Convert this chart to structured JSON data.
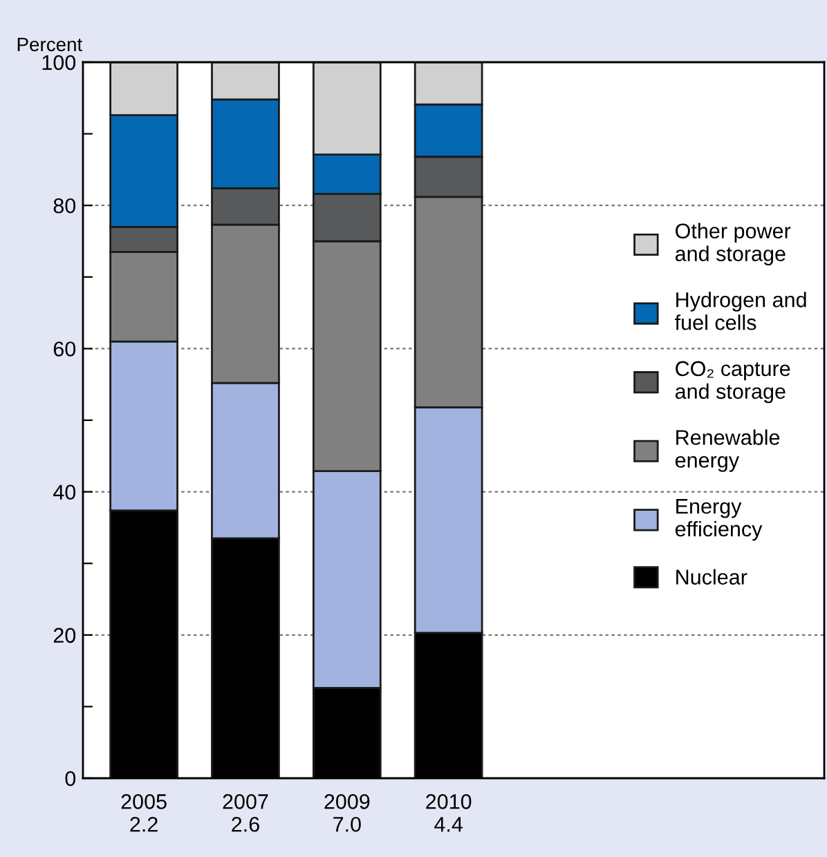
{
  "chart_data": {
    "type": "bar",
    "stacked": true,
    "ylabel": "Percent",
    "categories": [
      "2005\n2.2",
      "2007\n2.6",
      "2009\n7.0",
      "2010\n4.4"
    ],
    "series": [
      {
        "name": "Nuclear",
        "color": "#000000",
        "values": [
          37.4,
          33.5,
          12.6,
          20.3
        ]
      },
      {
        "name": "Energy\nefficiency",
        "color": "#a1b3de",
        "values": [
          23.6,
          21.7,
          30.3,
          31.5
        ]
      },
      {
        "name": "Renewable\nenergy",
        "color": "#808080",
        "values": [
          12.5,
          22.1,
          32.1,
          29.4
        ]
      },
      {
        "name": "CO₂ capture\nand storage",
        "color": "#58595b",
        "values": [
          3.5,
          5.1,
          6.6,
          5.6
        ]
      },
      {
        "name": "Hydrogen and\nfuel cells",
        "color": "#0568b3",
        "values": [
          15.6,
          12.4,
          5.5,
          7.3
        ]
      },
      {
        "name": "Other power\nand storage",
        "color": "#d0d0d0",
        "values": [
          7.4,
          5.2,
          12.9,
          5.9
        ]
      }
    ],
    "ylim": [
      0,
      100
    ],
    "yticks": [
      0,
      {
        "value": 10,
        "label": null
      },
      20,
      {
        "value": 30,
        "label": null
      },
      40,
      {
        "value": 50,
        "label": null
      },
      60,
      {
        "value": 70,
        "label": null
      },
      80,
      {
        "value": 90,
        "label": null
      },
      100
    ],
    "grid": "y",
    "legend": "right",
    "line_style": "dotted"
  }
}
